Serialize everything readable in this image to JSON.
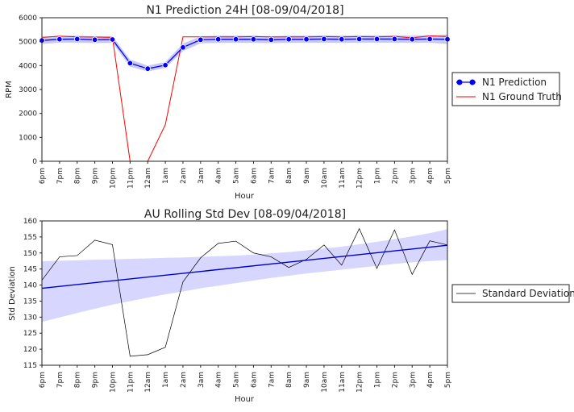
{
  "chart_data": [
    {
      "type": "line",
      "title": "N1 Prediction 24H [08-09/04/2018]",
      "xlabel": "Hour",
      "ylabel": "RPM",
      "ylim": [
        0,
        6000
      ],
      "yticks": [
        0,
        1000,
        2000,
        3000,
        4000,
        5000,
        6000
      ],
      "categories": [
        "6pm",
        "7pm",
        "8pm",
        "9pm",
        "10pm",
        "11pm",
        "12am",
        "1am",
        "2am",
        "3am",
        "4am",
        "5am",
        "6am",
        "7am",
        "8am",
        "9am",
        "10am",
        "11am",
        "12pm",
        "1pm",
        "2pm",
        "3pm",
        "4pm",
        "5pm"
      ],
      "series": [
        {
          "name": "N1 Prediction",
          "color": "#0000ff",
          "marker": "circle",
          "band_color": "#c8c8f8",
          "values": [
            5050,
            5100,
            5110,
            5080,
            5090,
            4100,
            3870,
            4020,
            4760,
            5080,
            5100,
            5100,
            5100,
            5080,
            5100,
            5100,
            5110,
            5100,
            5110,
            5110,
            5110,
            5100,
            5110,
            5100
          ],
          "lower": [
            4900,
            4960,
            4960,
            4940,
            4950,
            3960,
            3750,
            3900,
            4600,
            4930,
            4950,
            4950,
            4950,
            4940,
            4950,
            4950,
            4960,
            4950,
            4960,
            4960,
            4960,
            4950,
            4960,
            4900
          ],
          "upper": [
            5200,
            5240,
            5250,
            5220,
            5230,
            4250,
            4000,
            4150,
            4920,
            5220,
            5250,
            5250,
            5250,
            5220,
            5250,
            5250,
            5260,
            5250,
            5260,
            5260,
            5260,
            5250,
            5260,
            5300
          ]
        },
        {
          "name": "N1 Ground Truth",
          "color": "#ff0000",
          "values": [
            5180,
            5230,
            5200,
            5190,
            5180,
            0,
            0,
            1530,
            5200,
            5200,
            5200,
            5200,
            5210,
            5200,
            5200,
            5200,
            5210,
            5200,
            5210,
            5200,
            5220,
            5160,
            5240,
            5210
          ]
        }
      ],
      "legend_position": "outside-right"
    },
    {
      "type": "line",
      "title": "AU Rolling Std Dev [08-09/04/2018]",
      "xlabel": "Hour",
      "ylabel": "Std Deviation",
      "ylim": [
        115,
        160
      ],
      "yticks": [
        115,
        120,
        125,
        130,
        135,
        140,
        145,
        150,
        155,
        160
      ],
      "categories": [
        "6pm",
        "7pm",
        "8pm",
        "9pm",
        "10pm",
        "11pm",
        "12am",
        "1am",
        "2am",
        "3am",
        "4am",
        "5am",
        "6am",
        "7am",
        "8am",
        "9am",
        "10am",
        "11am",
        "12pm",
        "1pm",
        "2pm",
        "3pm",
        "4pm",
        "5pm"
      ],
      "series": [
        {
          "name": "Standard Deviation",
          "color": "#000000",
          "values": [
            141.5,
            148.8,
            149.2,
            154.0,
            152.6,
            117.8,
            118.3,
            120.6,
            141.0,
            148.5,
            153.0,
            153.7,
            150.0,
            148.8,
            145.5,
            148.0,
            152.5,
            146.2,
            157.6,
            145.2,
            157.2,
            143.3,
            153.8,
            152.5
          ]
        }
      ],
      "trend_line": {
        "color": "#0000cc",
        "start": 139.0,
        "end": 152.4
      },
      "trend_band": {
        "color": "#d6d6ff",
        "lower": [
          128.5,
          129.9,
          131.3,
          132.6,
          133.9,
          135.0,
          136.1,
          137.1,
          138.0,
          139.0,
          139.8,
          140.6,
          141.4,
          142.2,
          142.9,
          143.6,
          144.2,
          144.8,
          145.4,
          146.0,
          146.6,
          147.1,
          147.5,
          147.8
        ],
        "upper": [
          147.4,
          147.6,
          147.7,
          147.9,
          148.0,
          148.2,
          148.3,
          148.5,
          148.6,
          148.8,
          149.0,
          149.2,
          149.5,
          149.9,
          150.3,
          150.8,
          151.4,
          152.0,
          152.7,
          153.5,
          154.3,
          155.2,
          156.2,
          157.4
        ]
      },
      "legend_position": "outside-right"
    }
  ]
}
